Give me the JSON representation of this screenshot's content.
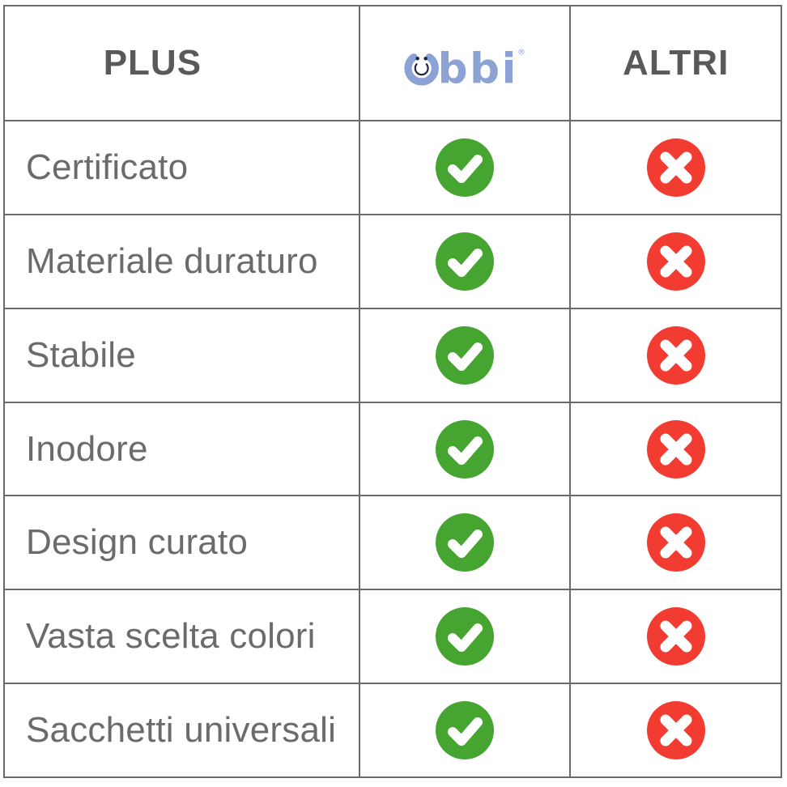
{
  "chart_data": {
    "type": "table",
    "title": "",
    "columns": [
      "PLUS",
      "ubbi",
      "ALTRI"
    ],
    "rows": [
      {
        "feature": "Certificato",
        "ubbi": true,
        "altri": false
      },
      {
        "feature": "Materiale duraturo",
        "ubbi": true,
        "altri": false
      },
      {
        "feature": "Stabile",
        "ubbi": true,
        "altri": false
      },
      {
        "feature": "Inodore",
        "ubbi": true,
        "altri": false
      },
      {
        "feature": "Design curato",
        "ubbi": true,
        "altri": false
      },
      {
        "feature": "Vasta scelta colori",
        "ubbi": true,
        "altri": false
      },
      {
        "feature": "Sacchetti universali",
        "ubbi": true,
        "altri": false
      }
    ],
    "cell_symbols": {
      "true": "green-check-circle",
      "false": "red-x-circle"
    },
    "grid": "on",
    "legend_position": "none"
  },
  "header": {
    "plus_label": "PLUS",
    "brand_name": "ubbi",
    "brand_text": "bbi",
    "registered_mark": "®",
    "altri_label": "ALTRI"
  },
  "icons": {
    "check": "check-circle-icon",
    "cross": "x-circle-icon",
    "brand_mark": "ubbi-smiley-u-icon"
  },
  "colors": {
    "check_green": "#46a430",
    "cross_red": "#f23b31",
    "brand_blue": "#8ca2d4",
    "brand_dark": "#20253a",
    "header_text": "#58595b",
    "row_text": "#6b6b6b",
    "grid_line": "#6a6a6a",
    "icon_glyph": "#ffffff",
    "background": "#ffffff"
  }
}
